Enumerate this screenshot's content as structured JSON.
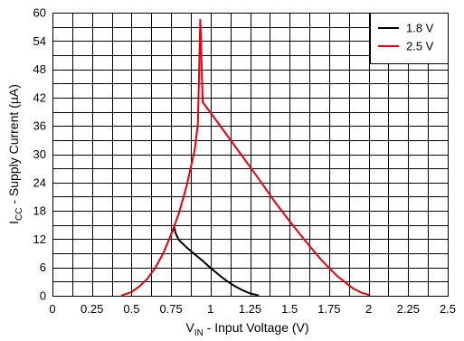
{
  "chart_data": {
    "type": "line",
    "title": "",
    "xlabel": {
      "main": "V",
      "sub": "IN",
      "rest": " - Input Voltage (V)"
    },
    "ylabel": {
      "main": "I",
      "sub": "CC",
      "rest": " - Supply Current (µA)"
    },
    "xlim": [
      0,
      2.5
    ],
    "ylim": [
      0,
      60
    ],
    "x_ticks": [
      0,
      0.25,
      0.5,
      0.75,
      1,
      1.25,
      1.5,
      1.75,
      2,
      2.25,
      2.5
    ],
    "x_tick_labels": [
      "0",
      "0.25",
      "0.5",
      "0.75",
      "1",
      "1.25",
      "1.5",
      "1.75",
      "2",
      "2.25",
      "2.5"
    ],
    "y_ticks": [
      0,
      6,
      12,
      18,
      24,
      30,
      36,
      42,
      48,
      54,
      60
    ],
    "y_tick_labels": [
      "0",
      "6",
      "12",
      "18",
      "24",
      "30",
      "36",
      "42",
      "48",
      "54",
      "60"
    ],
    "x_minor_step": 0.125,
    "y_minor_step": 3,
    "grid": true,
    "legend_position": "top-right",
    "series": [
      {
        "name": "1.8 V",
        "color": "#000000",
        "x": [
          0.75,
          0.77,
          0.78,
          0.8,
          0.85,
          0.9,
          0.95,
          1.0,
          1.05,
          1.1,
          1.15,
          1.2,
          1.25,
          1.3
        ],
        "y": [
          13.0,
          14.5,
          13.2,
          11.8,
          10.2,
          8.8,
          7.4,
          5.9,
          4.5,
          3.2,
          2.1,
          1.2,
          0.5,
          0.1
        ]
      },
      {
        "name": "2.5 V",
        "color": "#e8000b",
        "x": [
          0.44,
          0.5,
          0.55,
          0.6,
          0.65,
          0.7,
          0.75,
          0.8,
          0.85,
          0.9,
          0.92,
          0.935,
          0.95,
          1.0,
          1.1,
          1.2,
          1.3,
          1.4,
          1.5,
          1.6,
          1.7,
          1.8,
          1.9,
          1.95,
          2.0
        ],
        "y": [
          0.1,
          0.8,
          2.0,
          3.6,
          5.9,
          9.0,
          13.0,
          17.5,
          23.5,
          31.0,
          36.5,
          58.5,
          41.0,
          38.8,
          34.2,
          29.6,
          25.0,
          20.2,
          15.8,
          11.6,
          7.6,
          4.2,
          1.6,
          0.7,
          0.2
        ]
      }
    ]
  }
}
